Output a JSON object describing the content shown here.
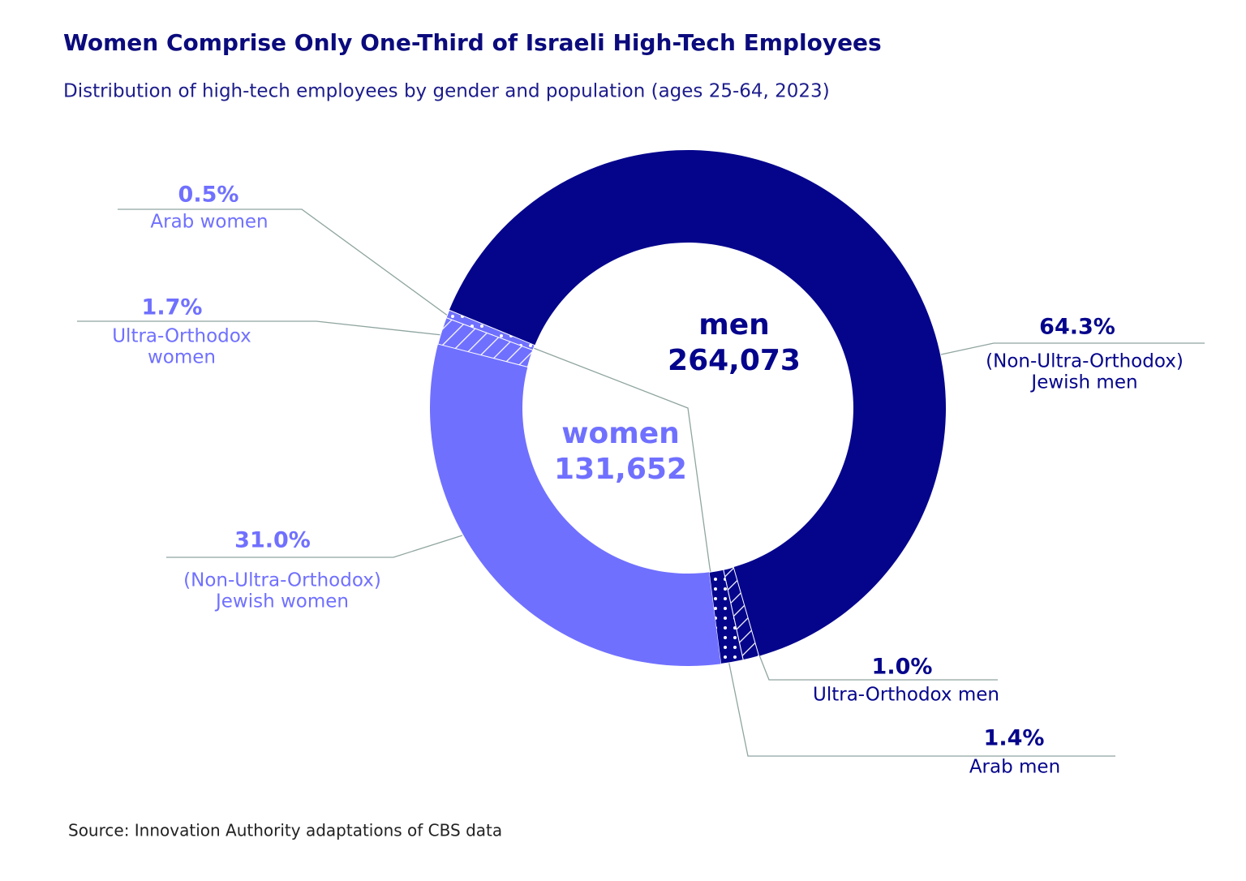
{
  "chart_data": {
    "type": "donut",
    "title": "Women Comprise Only One-Third of Israeli High-Tech Employees",
    "subtitle": "Distribution of high-tech employees by gender and population (ages 25-64, 2023)",
    "source": "Source: Innovation Authority adaptations of CBS data",
    "categories": [
      [
        "(Non-Ultra-Orthodox)",
        "Jewish men"
      ],
      [
        "Ultra-Orthodox men"
      ],
      [
        "Arab men"
      ],
      [
        "(Non-Ultra-Orthodox)",
        "Jewish women"
      ],
      [
        "Ultra-Orthodox",
        "women"
      ],
      [
        "Arab women"
      ]
    ],
    "values": [
      64.3,
      1.0,
      1.4,
      31.0,
      1.7,
      0.5
    ],
    "value_labels": [
      "64.3%",
      "1.0%",
      "1.4%",
      "31.0%",
      "1.7%",
      "0.5%"
    ],
    "colors": [
      "#05058c",
      "#05058c",
      "#05058c",
      "#7070ff",
      "#7070ff",
      "#7070ff"
    ],
    "patterns": [
      "solid",
      "hatch",
      "dots",
      "solid",
      "hatch",
      "dots"
    ],
    "groups": [
      {
        "name": "men",
        "value": 264073,
        "label": "264,073",
        "color": "#05058c"
      },
      {
        "name": "women",
        "value": 131652,
        "label": "131,652",
        "color": "#7070ff"
      }
    ]
  }
}
